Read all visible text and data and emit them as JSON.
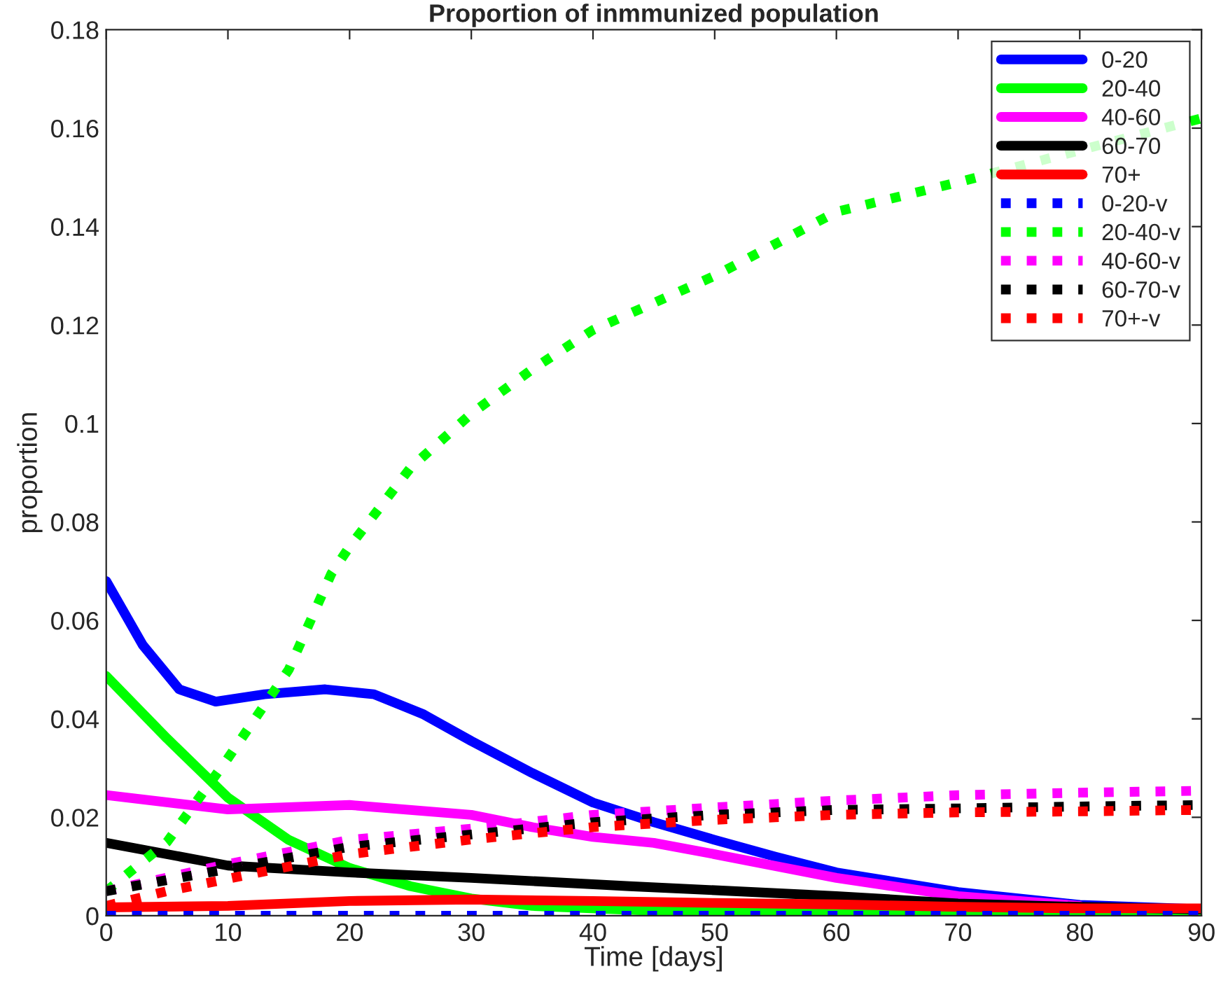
{
  "chart_data": {
    "type": "line",
    "title": "Proportion of inmmunized population",
    "xlabel": "Time [days]",
    "ylabel": "proportion",
    "xlim": [
      0,
      90
    ],
    "xticks": [
      0,
      10,
      20,
      30,
      40,
      50,
      60,
      70,
      80,
      90
    ],
    "ylim": [
      0,
      0.18
    ],
    "yticks": [
      0,
      0.02,
      0.04,
      0.06,
      0.08,
      0.1,
      0.12,
      0.14,
      0.16,
      0.18
    ],
    "grid": false,
    "legend": "top right",
    "series": [
      {
        "name": "0-20",
        "color": "#0000ff",
        "line_style": "solid",
        "x": [
          0,
          3,
          6,
          9,
          13,
          18,
          22,
          26,
          30,
          35,
          40,
          45,
          50,
          55,
          60,
          70,
          80,
          90
        ],
        "values": [
          0.068,
          0.055,
          0.046,
          0.0435,
          0.045,
          0.046,
          0.045,
          0.041,
          0.0355,
          0.029,
          0.023,
          0.019,
          0.0154,
          0.012,
          0.0088,
          0.0048,
          0.0022,
          0.0013
        ]
      },
      {
        "name": "20-40",
        "color": "#00ff00",
        "line_style": "solid",
        "x": [
          0,
          5,
          10,
          15,
          20,
          25,
          30,
          35,
          45,
          60,
          90
        ],
        "values": [
          0.0487,
          0.036,
          0.024,
          0.0154,
          0.0097,
          0.006,
          0.0035,
          0.002,
          0.001,
          0.0004,
          0.0002
        ]
      },
      {
        "name": "40-60",
        "color": "#ff00ff",
        "line_style": "solid",
        "x": [
          0,
          10,
          20,
          30,
          35,
          40,
          45,
          50,
          60,
          70,
          80
        ],
        "values": [
          0.0245,
          0.0216,
          0.0225,
          0.0205,
          0.018,
          0.016,
          0.0148,
          0.0125,
          0.0077,
          0.004,
          0.002
        ]
      },
      {
        "name": "60-70",
        "color": "#000000",
        "line_style": "solid",
        "x": [
          0,
          10,
          20,
          30,
          43,
          60,
          70,
          80,
          90
        ],
        "values": [
          0.0148,
          0.0102,
          0.0088,
          0.0077,
          0.006,
          0.004,
          0.0025,
          0.0018,
          0.0013
        ]
      },
      {
        "name": "70+",
        "color": "#ff0000",
        "line_style": "solid",
        "x": [
          0,
          10,
          20,
          30,
          40,
          50,
          60,
          70,
          80,
          90
        ],
        "values": [
          0.0017,
          0.002,
          0.003,
          0.0033,
          0.003,
          0.0026,
          0.0023,
          0.0018,
          0.0015,
          0.0015
        ]
      },
      {
        "name": "0-20-v",
        "color": "#0000ff",
        "line_style": "dotted",
        "x": [
          0,
          90
        ],
        "values": [
          0,
          0
        ]
      },
      {
        "name": "20-40-v",
        "color": "#00ff00",
        "line_style": "dotted",
        "x": [
          0,
          2,
          5,
          10,
          15,
          18.5,
          20,
          25,
          30,
          35,
          40,
          50,
          60,
          70,
          80,
          90
        ],
        "values": [
          0.005,
          0.009,
          0.015,
          0.032,
          0.05,
          0.0695,
          0.075,
          0.091,
          0.102,
          0.111,
          0.119,
          0.13,
          0.143,
          0.149,
          null,
          0.162
        ]
      },
      {
        "name": "40-60-v",
        "color": "#ff00ff",
        "line_style": "dotted",
        "x": [
          0,
          10,
          20,
          30,
          40,
          50,
          60,
          70,
          80,
          90
        ],
        "values": [
          0.005,
          0.0105,
          0.0154,
          0.0177,
          0.0205,
          0.022,
          0.0234,
          0.0245,
          0.025,
          0.0254
        ]
      },
      {
        "name": "60-70-v",
        "color": "#000000",
        "line_style": "dotted",
        "x": [
          0,
          10,
          20,
          30,
          40,
          50,
          60,
          70,
          80,
          90
        ],
        "values": [
          0.005,
          0.0095,
          0.014,
          0.0165,
          0.019,
          0.0205,
          0.0215,
          0.0218,
          0.0222,
          0.0225
        ]
      },
      {
        "name": "70+-v",
        "color": "#ff0000",
        "line_style": "dotted",
        "x": [
          0,
          5,
          10,
          20,
          30,
          40,
          50,
          60,
          70,
          80,
          90
        ],
        "values": [
          0.002,
          0.005,
          0.0075,
          0.0125,
          0.0155,
          0.018,
          0.0195,
          0.0205,
          0.021,
          0.0212,
          0.0215
        ]
      }
    ]
  }
}
